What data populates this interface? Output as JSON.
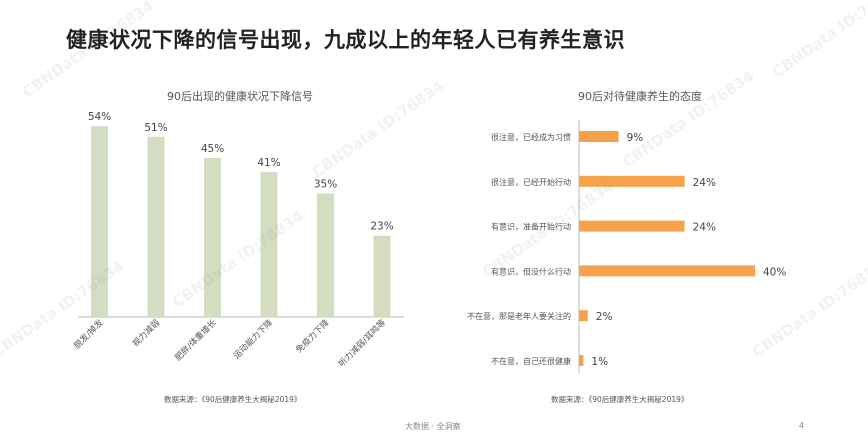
{
  "slide": {
    "title": "健康状况下降的信号出现，九成以上的年轻人已有养生意识",
    "footer": "大数据 · 全洞察",
    "page_number": "4",
    "watermark": "CBNData ID:76834"
  },
  "chart_data": [
    {
      "type": "bar",
      "title": "90后出现的健康状况下降信号",
      "categories": [
        "脱发/掉发",
        "视力减弱",
        "肥胖/体重增长",
        "运动能力下降",
        "免疫力下降",
        "听力减弱/耳鸣等"
      ],
      "values": [
        54,
        51,
        45,
        41,
        35,
        23
      ],
      "value_suffix": "%",
      "ylim": [
        0,
        60
      ],
      "color": "#d4dcc2",
      "source": "数据来源：《90后健康养生大揭秘2019》"
    },
    {
      "type": "bar",
      "orientation": "horizontal",
      "title": "90后对待健康养生的态度",
      "categories": [
        "很注意，已经成为习惯",
        "很注意，已经开始行动",
        "有意识，准备开始行动",
        "有意识，但没什么行动",
        "不在意，那是老年人要关注的",
        "不在意，自己还很健康"
      ],
      "values": [
        9,
        24,
        24,
        40,
        2,
        1
      ],
      "value_suffix": "%",
      "xlim": [
        0,
        45
      ],
      "color": "#f5a24a",
      "source": "数据来源：《90后健康养生大揭秘2019》"
    }
  ]
}
